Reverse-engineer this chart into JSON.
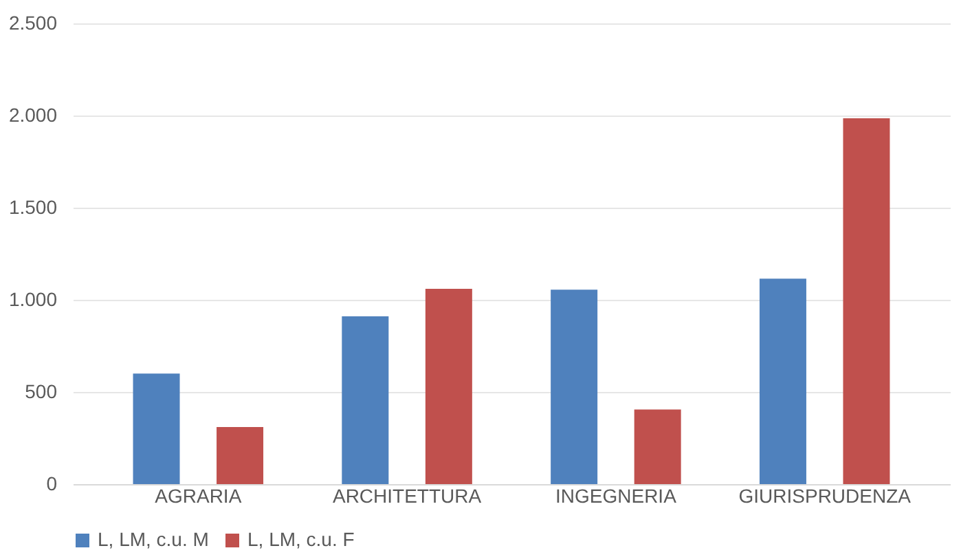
{
  "chart_data": {
    "type": "bar",
    "categories": [
      "AGRARIA",
      "ARCHITETTURA",
      "INGEGNERIA",
      "GIURISPRUDENZA"
    ],
    "series": [
      {
        "name": "L, LM, c.u. M",
        "color": "#4f81bd",
        "values": [
          600,
          910,
          1055,
          1115
        ]
      },
      {
        "name": "L, LM, c.u. F",
        "color": "#c0504d",
        "values": [
          310,
          1060,
          405,
          1985
        ]
      }
    ],
    "ylim": [
      0,
      2500
    ],
    "yticks": [
      0,
      {
        "value": 500,
        "label": "500"
      },
      {
        "value": 1000,
        "label": "1.000"
      },
      {
        "value": 1500,
        "label": "1.500"
      },
      {
        "value": 2000,
        "label": "2.000"
      },
      {
        "value": 2500,
        "label": "2.500"
      }
    ],
    "grid": "y",
    "legend": "bottom"
  }
}
